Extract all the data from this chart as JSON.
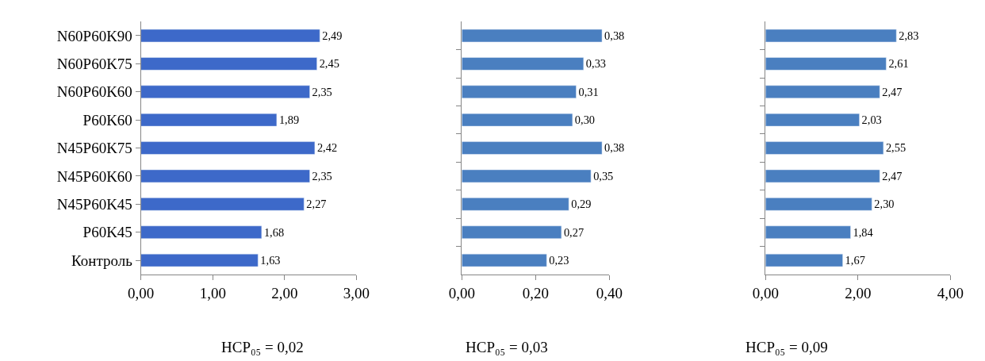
{
  "chart_data": [
    {
      "type": "bar",
      "orientation": "horizontal",
      "categories": [
        "N60P60K90",
        "N60P60K75",
        "N60P60K60",
        "P60K60",
        "N45P60K75",
        "N45P60K60",
        "N45P60K45",
        "P60K45",
        "Контроль"
      ],
      "values": [
        2.49,
        2.45,
        2.35,
        1.89,
        2.42,
        2.35,
        2.27,
        1.68,
        1.63
      ],
      "value_labels": [
        "2,49",
        "2,45",
        "2,35",
        "1,89",
        "2,42",
        "2,35",
        "2,27",
        "1,68",
        "1,63"
      ],
      "color": "#3d69c9",
      "xlim": [
        0,
        3
      ],
      "xticks": [
        {
          "value": 0,
          "label": "0,00"
        },
        {
          "value": 1,
          "label": "1,00"
        },
        {
          "value": 2,
          "label": "2,00"
        },
        {
          "value": 3,
          "label": "3,00"
        }
      ],
      "annotations": [
        "НСР₀₅ = 0,02"
      ]
    },
    {
      "type": "bar",
      "orientation": "horizontal",
      "categories": [
        null,
        null,
        null,
        null,
        null,
        null,
        null,
        null,
        null
      ],
      "values": [
        0.38,
        0.33,
        0.31,
        0.3,
        0.38,
        0.35,
        0.29,
        0.27,
        0.23
      ],
      "value_labels": [
        "0,38",
        "0,33",
        "0,31",
        "0,30",
        "0,38",
        "0,35",
        "0,29",
        "0,27",
        "0,23"
      ],
      "color": "#4a7fc0",
      "xlim": [
        0,
        0.4
      ],
      "xticks": [
        {
          "value": 0,
          "label": "0,00"
        },
        {
          "value": 0.2,
          "label": "0,20"
        },
        {
          "value": 0.4,
          "label": "0,40"
        }
      ],
      "annotations": [
        "НСР₀₅ = 0,03"
      ]
    },
    {
      "type": "bar",
      "orientation": "horizontal",
      "categories": [
        null,
        null,
        null,
        null,
        null,
        null,
        null,
        null,
        null
      ],
      "values": [
        2.83,
        2.61,
        2.47,
        2.03,
        2.55,
        2.47,
        2.3,
        1.84,
        1.67
      ],
      "value_labels": [
        "2,83",
        "2,61",
        "2,47",
        "2,03",
        "2,55",
        "2,47",
        "2,30",
        "1,84",
        "1,67"
      ],
      "color": "#4a7fc0",
      "xlim": [
        0,
        4
      ],
      "xticks": [
        {
          "value": 0,
          "label": "0,00"
        },
        {
          "value": 2,
          "label": "2,00"
        },
        {
          "value": 4,
          "label": "4,00"
        }
      ],
      "annotations": [
        "НСР₀₅ = 0,09"
      ]
    }
  ]
}
